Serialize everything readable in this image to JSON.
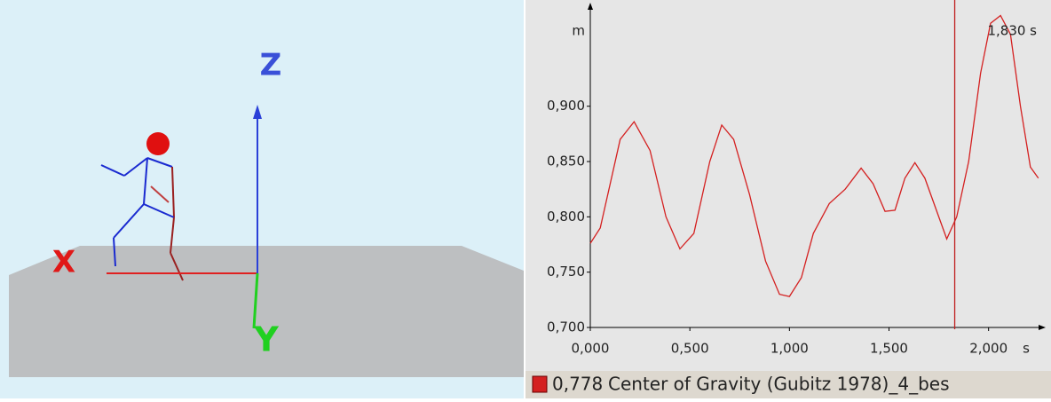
{
  "scene": {
    "axes": {
      "x": "X",
      "y": "Y",
      "z": "Z"
    }
  },
  "chart_data": {
    "type": "line",
    "y_unit": "m",
    "x_unit": "s",
    "xlim": [
      0,
      2.26
    ],
    "ylim": [
      0.7,
      0.984
    ],
    "xticks": [
      {
        "value": 0,
        "label": "0,000"
      },
      {
        "value": 0.5,
        "label": "0,500"
      },
      {
        "value": 1,
        "label": "1,000"
      },
      {
        "value": 1.5,
        "label": "1,500"
      },
      {
        "value": 2,
        "label": "2,000"
      }
    ],
    "yticks": [
      {
        "value": 0.7,
        "label": "0,700"
      },
      {
        "value": 0.75,
        "label": "0,750"
      },
      {
        "value": 0.8,
        "label": "0,800"
      },
      {
        "value": 0.85,
        "label": "0,850"
      },
      {
        "value": 0.9,
        "label": "0,900"
      }
    ],
    "x": [
      0,
      0.05,
      0.1,
      0.15,
      0.22,
      0.3,
      0.38,
      0.45,
      0.52,
      0.6,
      0.66,
      0.72,
      0.8,
      0.88,
      0.95,
      1,
      1.06,
      1.12,
      1.2,
      1.28,
      1.36,
      1.42,
      1.48,
      1.53,
      1.58,
      1.63,
      1.68,
      1.75,
      1.79,
      1.84,
      1.9,
      1.96,
      2.01,
      2.06,
      2.11,
      2.16,
      2.21,
      2.25
    ],
    "series": [
      {
        "name": "Center of Gravity (Gubitz 1978)_4_bes",
        "color": "#d42020",
        "values": [
          0.776,
          0.79,
          0.83,
          0.87,
          0.886,
          0.86,
          0.8,
          0.771,
          0.785,
          0.85,
          0.883,
          0.87,
          0.82,
          0.76,
          0.73,
          0.728,
          0.745,
          0.785,
          0.812,
          0.825,
          0.844,
          0.83,
          0.805,
          0.806,
          0.835,
          0.849,
          0.835,
          0.8,
          0.78,
          0.8,
          0.85,
          0.93,
          0.975,
          0.982,
          0.965,
          0.9,
          0.845,
          0.835
        ]
      }
    ],
    "cursor": {
      "x": 1.83,
      "x_label": "1,830 s",
      "value_label": "0,778"
    }
  }
}
